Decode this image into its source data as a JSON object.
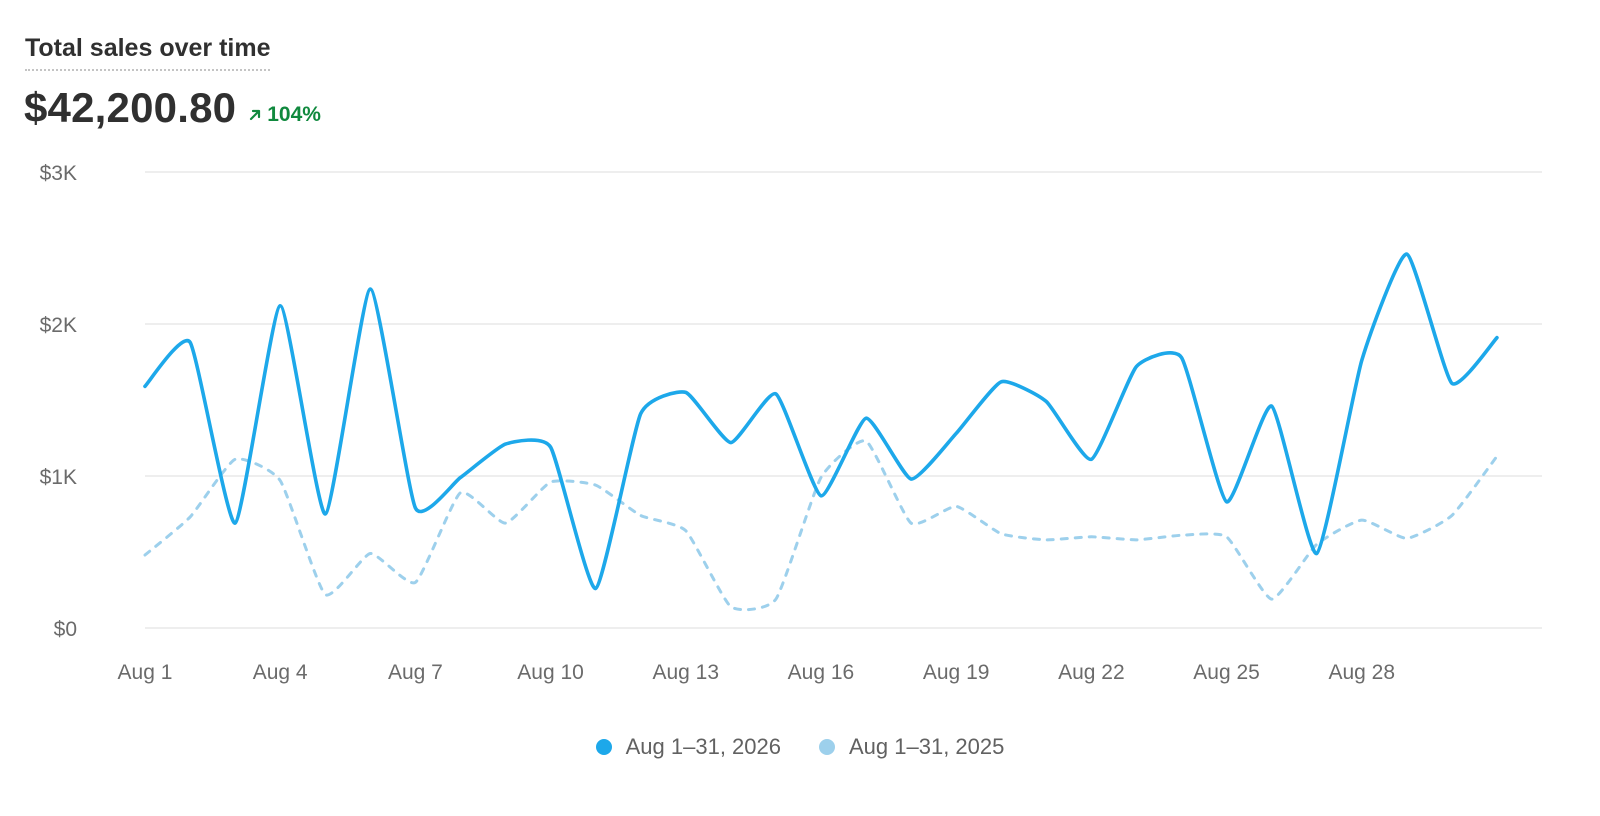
{
  "header": {
    "title": "Total sales over time",
    "total": "$42,200.80",
    "change": "104%",
    "change_icon": "arrow-up-right-icon"
  },
  "colors": {
    "current": "#1da8ea",
    "previous": "#9dd0ec",
    "grid": "#e8e8e8",
    "axis_text": "#6b6b6b",
    "positive": "#10893e"
  },
  "legend": {
    "current": "Aug 1–31, 2026",
    "previous": "Aug 1–31, 2025"
  },
  "chart_data": {
    "type": "line",
    "title": "Total sales over time",
    "x": [
      1,
      2,
      3,
      4,
      5,
      6,
      7,
      8,
      9,
      10,
      11,
      12,
      13,
      14,
      15,
      16,
      17,
      18,
      19,
      20,
      21,
      22,
      23,
      24,
      25,
      26,
      27,
      28,
      29,
      30,
      31
    ],
    "x_tick_labels": [
      "Aug 1",
      "Aug 4",
      "Aug 7",
      "Aug 10",
      "Aug 13",
      "Aug 16",
      "Aug 19",
      "Aug 22",
      "Aug 25",
      "Aug 28"
    ],
    "x_tick_days": [
      1,
      4,
      7,
      10,
      13,
      16,
      19,
      22,
      25,
      28
    ],
    "y_tick_labels": [
      "$0",
      "$1K",
      "$2K",
      "$3K"
    ],
    "y_ticks": [
      0,
      1000,
      2000,
      3000
    ],
    "ylim": [
      0,
      3000
    ],
    "grid": true,
    "legend_position": "bottom-center",
    "series": [
      {
        "name": "Aug 1–31, 2026",
        "style": "solid",
        "values": [
          1590,
          1880,
          690,
          2120,
          750,
          2230,
          790,
          990,
          1210,
          1190,
          260,
          1410,
          1550,
          1220,
          1540,
          870,
          1380,
          980,
          1280,
          1620,
          1490,
          1110,
          1720,
          1780,
          830,
          1460,
          490,
          1760,
          2460,
          1610,
          1910
        ]
      },
      {
        "name": "Aug 1–31, 2025",
        "style": "dashed",
        "values": [
          480,
          730,
          1110,
          970,
          220,
          490,
          300,
          890,
          690,
          960,
          940,
          740,
          640,
          140,
          190,
          990,
          1230,
          690,
          800,
          620,
          580,
          600,
          580,
          610,
          600,
          190,
          550,
          710,
          590,
          740,
          1130
        ]
      }
    ]
  }
}
